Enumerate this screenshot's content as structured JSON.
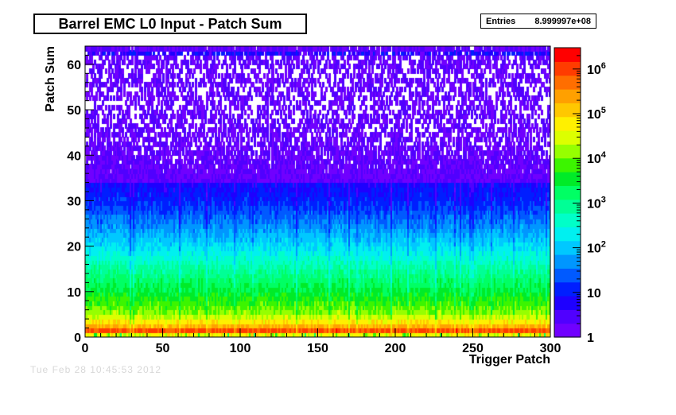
{
  "chart_data": {
    "type": "heatmap",
    "title": "Barrel EMC L0 Input - Patch Sum",
    "xlabel": "Trigger Patch",
    "ylabel": "Patch Sum",
    "xlim": [
      0,
      300
    ],
    "ylim": [
      0,
      64
    ],
    "x_ticks": [
      0,
      50,
      100,
      150,
      200,
      250,
      300
    ],
    "y_ticks": [
      0,
      10,
      20,
      30,
      40,
      50,
      60
    ],
    "z_scale": "log",
    "z_range": [
      1,
      3000000
    ],
    "z_tick_values": [
      1,
      10,
      100,
      1000,
      10000,
      100000,
      1000000
    ],
    "z_tick_labels": [
      "1",
      "10",
      "10^2",
      "10^3",
      "10^4",
      "10^5",
      "10^6"
    ],
    "stats": {
      "label": "Entries",
      "value": "8.999997e+08"
    },
    "approx_profile": [
      {
        "patch_sum": 0,
        "count": 300
      },
      {
        "patch_sum": 1,
        "count": 2000000
      },
      {
        "patch_sum": 2,
        "count": 300000
      },
      {
        "patch_sum": 5,
        "count": 15000
      },
      {
        "patch_sum": 10,
        "count": 3000
      },
      {
        "patch_sum": 15,
        "count": 800
      },
      {
        "patch_sum": 20,
        "count": 150
      },
      {
        "patch_sum": 25,
        "count": 40
      },
      {
        "patch_sum": 30,
        "count": 12
      },
      {
        "patch_sum": 40,
        "count": 3
      },
      {
        "patch_sum": 50,
        "count": 1.5
      },
      {
        "patch_sum": 62,
        "count": 2
      }
    ]
  },
  "footer": "Tue Feb 28 10:45:53 2012"
}
